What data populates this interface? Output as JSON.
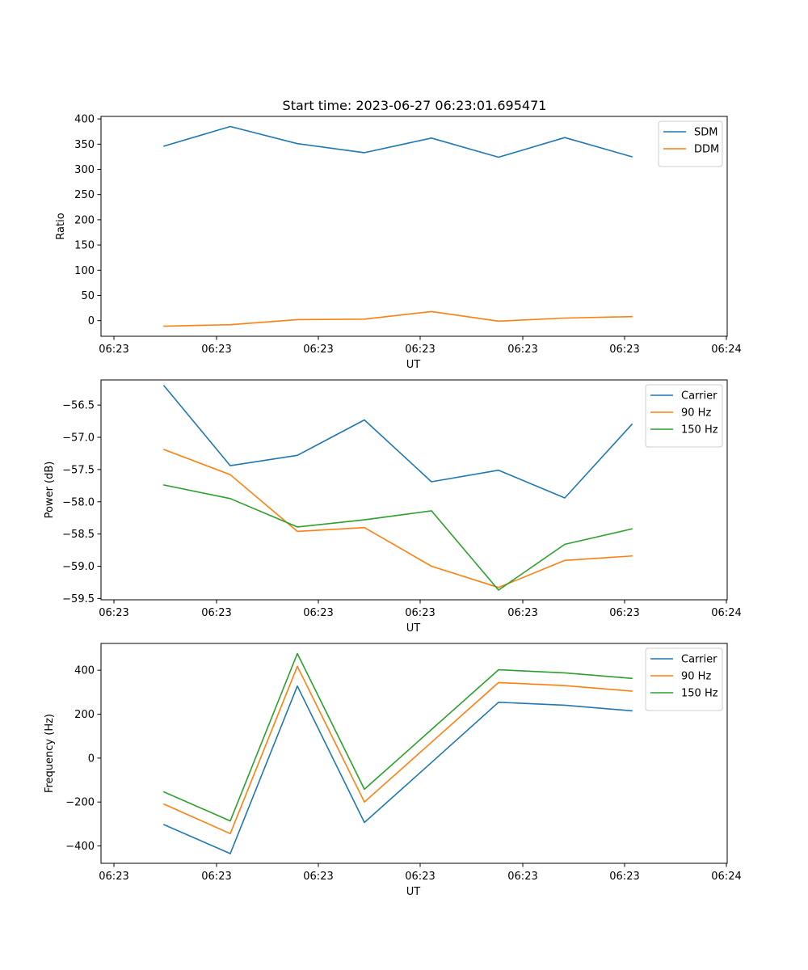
{
  "figure": {
    "title": "Start time: 2023-06-27 06:23:01.695471"
  },
  "chart_data": [
    {
      "type": "line",
      "title": "Start time: 2023-06-27 06:23:01.695471",
      "xlabel": "UT",
      "ylabel": "Ratio",
      "x_tick_labels": [
        "06:23",
        "06:23",
        "06:23",
        "06:23",
        "06:23",
        "06:23",
        "06:24"
      ],
      "y_ticks": [
        0,
        50,
        100,
        150,
        200,
        250,
        300,
        350,
        400
      ],
      "y_tick_labels": [
        "0",
        "50",
        "100",
        "150",
        "200",
        "250",
        "300",
        "350",
        "400"
      ],
      "ylim": [
        -31,
        405
      ],
      "legend_position": "top-right",
      "series": [
        {
          "name": "SDM",
          "color": "#1f77b4",
          "values": [
            346,
            385,
            351,
            333,
            362,
            324,
            363,
            325
          ]
        },
        {
          "name": "DDM",
          "color": "#ff7f0e",
          "values": [
            -11,
            -8,
            2,
            3,
            18,
            -1,
            5,
            8
          ]
        }
      ]
    },
    {
      "type": "line",
      "title": "",
      "xlabel": "UT",
      "ylabel": "Power (dB)",
      "x_tick_labels": [
        "06:23",
        "06:23",
        "06:23",
        "06:23",
        "06:23",
        "06:23",
        "06:24"
      ],
      "y_ticks": [
        -56.5,
        -57.0,
        -57.5,
        -58.0,
        -58.5,
        -59.0,
        -59.5
      ],
      "y_tick_labels": [
        "−56.5",
        "−57.0",
        "−57.5",
        "−58.0",
        "−58.5",
        "−59.0",
        "−59.5"
      ],
      "ylim": [
        -59.52,
        -56.11
      ],
      "legend_position": "top-right",
      "series": [
        {
          "name": "Carrier",
          "color": "#1f77b4",
          "values": [
            -56.2,
            -57.44,
            -57.28,
            -56.73,
            -57.69,
            -57.51,
            -57.94,
            -56.8
          ]
        },
        {
          "name": "90 Hz",
          "color": "#ff7f0e",
          "values": [
            -57.19,
            -57.58,
            -58.46,
            -58.4,
            -59.0,
            -59.33,
            -58.91,
            -58.84
          ]
        },
        {
          "name": "150 Hz",
          "color": "#2ca02c",
          "values": [
            -57.74,
            -57.95,
            -58.39,
            -58.28,
            -58.14,
            -59.37,
            -58.66,
            -58.42
          ]
        }
      ]
    },
    {
      "type": "line",
      "title": "",
      "xlabel": "UT",
      "ylabel": "Frequency (Hz)",
      "x_tick_labels": [
        "06:23",
        "06:23",
        "06:23",
        "06:23",
        "06:23",
        "06:23",
        "06:24"
      ],
      "y_ticks": [
        400,
        200,
        0,
        -200,
        -400
      ],
      "y_tick_labels": [
        "400",
        "200",
        "0",
        "−200",
        "−400"
      ],
      "ylim": [
        -479,
        522
      ],
      "legend_position": "top-right",
      "series": [
        {
          "name": "Carrier",
          "color": "#1f77b4",
          "values": [
            -303,
            -435,
            328,
            -293,
            -20,
            254,
            241,
            215
          ]
        },
        {
          "name": "90 Hz",
          "color": "#ff7f0e",
          "values": [
            -210,
            -344,
            418,
            -200,
            72,
            344,
            330,
            305
          ]
        },
        {
          "name": "150 Hz",
          "color": "#2ca02c",
          "values": [
            -154,
            -286,
            476,
            -142,
            130,
            402,
            388,
            363
          ]
        }
      ]
    }
  ]
}
